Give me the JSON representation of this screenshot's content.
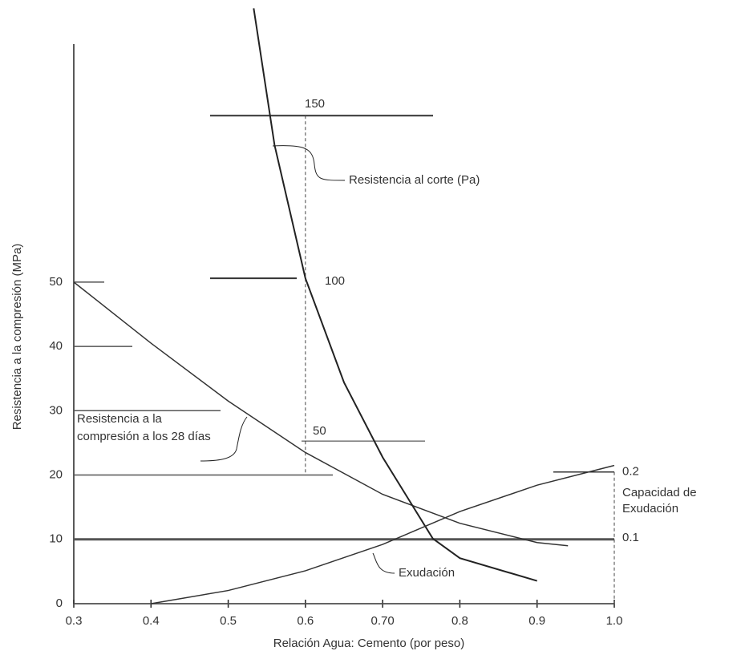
{
  "chart_data": {
    "type": "line",
    "x_label": "Relación Agua: Cemento (por peso)",
    "y_label": "Resistencia a la compresión (MPa)",
    "xlim": [
      0.3,
      1.0
    ],
    "xticks": [
      0.3,
      0.4,
      0.5,
      0.6,
      {
        "value": 0.7,
        "label": "0.70"
      },
      0.8,
      0.9,
      {
        "value": 1.0,
        "label": "1.0"
      }
    ],
    "ylim": [
      0,
      87
    ],
    "yticks": [
      0,
      10,
      20,
      30,
      40,
      50
    ],
    "y2lim": [
      0,
      172
    ],
    "y2ticks": [
      50,
      100,
      150
    ],
    "y3lim": [
      0,
      0.85
    ],
    "y3ticks": [
      0.1,
      0.2
    ],
    "series": [
      {
        "name": "Resistencia a la compresión a los 28 días",
        "color": "#333",
        "axis": "y",
        "x": [
          0.3,
          0.4,
          0.5,
          0.6,
          0.7,
          0.8,
          0.9,
          0.94
        ],
        "values": [
          50,
          40.5,
          31.5,
          23.5,
          17,
          12.5,
          9.5,
          9
        ]
      },
      {
        "name": "Resistencia al corte (Pa)",
        "color": "#222",
        "axis": "y2",
        "x": [
          0.533,
          0.56,
          0.6,
          0.65,
          0.7,
          0.765,
          0.8,
          0.9
        ],
        "values": [
          183,
          141,
          100,
          68,
          45,
          20,
          14,
          7
        ]
      },
      {
        "name": "Exudación",
        "color": "#333",
        "axis": "y3",
        "x": [
          0.4,
          0.5,
          0.6,
          0.7,
          0.8,
          0.9,
          1.0
        ],
        "values": [
          0,
          0.02,
          0.05,
          0.09,
          0.14,
          0.18,
          0.21
        ]
      }
    ],
    "bleed_label": "Capacidad de Exudación"
  }
}
